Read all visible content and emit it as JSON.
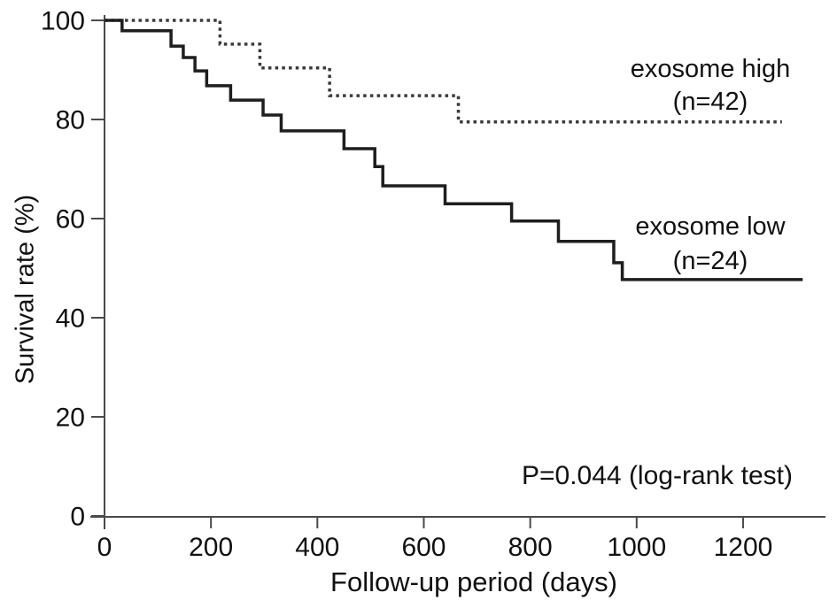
{
  "chart_data": {
    "type": "line",
    "subtype": "kaplan-meier-step-curves",
    "title": "",
    "xlabel": "Follow-up period (days)",
    "ylabel": "Survival rate (%)",
    "annotation": "P=0.044 (log-rank test)",
    "xlim": [
      0,
      1355
    ],
    "ylim": [
      0,
      100
    ],
    "x_ticks": [
      0,
      200,
      400,
      600,
      800,
      1000,
      1200
    ],
    "y_ticks": [
      0,
      20,
      40,
      60,
      80,
      100
    ],
    "grid": false,
    "legend_position": "inline-labels",
    "axis_color": "#4a4a4a",
    "series": [
      {
        "name": "exosome high",
        "n": 42,
        "label_line1": "exosome high",
        "label_line2": "(n=42)",
        "line_style": "dotted",
        "color": "#3a3a3a",
        "steps": [
          [
            0,
            100
          ],
          [
            217,
            95.2
          ],
          [
            292,
            90.4
          ],
          [
            423,
            84.8
          ],
          [
            665,
            79.5
          ],
          [
            1273,
            79.5
          ]
        ]
      },
      {
        "name": "exosome low",
        "n": 24,
        "label_line1": "exosome low",
        "label_line2": "(n=24)",
        "line_style": "solid",
        "color": "#1e1e1e",
        "steps": [
          [
            0,
            100
          ],
          [
            33,
            97.9
          ],
          [
            125,
            94.8
          ],
          [
            148,
            92.5
          ],
          [
            170,
            89.8
          ],
          [
            192,
            86.8
          ],
          [
            237,
            83.9
          ],
          [
            298,
            80.9
          ],
          [
            332,
            77.7
          ],
          [
            450,
            74.1
          ],
          [
            508,
            70.5
          ],
          [
            523,
            66.6
          ],
          [
            640,
            63.0
          ],
          [
            765,
            59.5
          ],
          [
            853,
            55.4
          ],
          [
            957,
            51.1
          ],
          [
            973,
            47.7
          ],
          [
            1312,
            47.7
          ]
        ]
      }
    ]
  }
}
